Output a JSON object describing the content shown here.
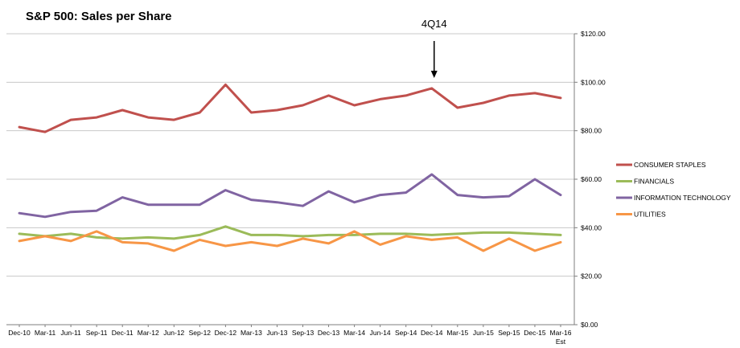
{
  "chart_data": {
    "type": "line",
    "title": "S&P 500: Sales per Share",
    "x": [
      "Dec-10",
      "Mar-11",
      "Jun-11",
      "Sep-11",
      "Dec-11",
      "Mar-12",
      "Jun-12",
      "Sep-12",
      "Dec-12",
      "Mar-13",
      "Jun-13",
      "Sep-13",
      "Dec-13",
      "Mar-14",
      "Jun-14",
      "Sep-14",
      "Dec-14",
      "Mar-15",
      "Jun-15",
      "Sep-15",
      "Dec-15",
      "Mar-16"
    ],
    "x_sublabels": {
      "21": "Est"
    },
    "ylim": [
      0,
      120
    ],
    "yticks": [
      0,
      20,
      40,
      60,
      80,
      100,
      120
    ],
    "ytick_labels": [
      "$0.00",
      "$20.00",
      "$40.00",
      "$60.00",
      "$80.00",
      "$100.00",
      "$120.00"
    ],
    "y_axis_side": "right",
    "grid": true,
    "legend_position": "right",
    "annotation": {
      "text": "4Q14",
      "x_index": 16,
      "type": "down-arrow"
    },
    "series": [
      {
        "name": "CONSUMER STAPLES",
        "color": "#c0504d",
        "values": [
          81.5,
          79.5,
          84.5,
          85.5,
          88.5,
          85.5,
          84.5,
          87.5,
          99,
          87.5,
          88.5,
          90.5,
          94.5,
          90.5,
          93,
          94.5,
          97.5,
          89.5,
          91.5,
          94.5,
          95.5,
          93.5
        ]
      },
      {
        "name": "FINANCIALS",
        "color": "#9bbb59",
        "values": [
          37.5,
          36.5,
          37.5,
          36,
          35.5,
          36,
          35.5,
          37,
          40.5,
          37,
          37,
          36.5,
          37,
          37,
          37.5,
          37.5,
          37,
          37.5,
          38,
          38,
          37.5,
          37
        ]
      },
      {
        "name": "INFORMATION TECHNOLOGY",
        "color": "#8064a2",
        "values": [
          46,
          44.5,
          46.5,
          47,
          52.5,
          49.5,
          49.5,
          49.5,
          55.5,
          51.5,
          50.5,
          49,
          55,
          50.5,
          53.5,
          54.5,
          62,
          53.5,
          52.5,
          53,
          60,
          53.5
        ]
      },
      {
        "name": "UTILITIES",
        "color": "#f79646",
        "values": [
          34.5,
          36.5,
          34.5,
          38.5,
          34,
          33.5,
          30.5,
          35,
          32.5,
          34,
          32.5,
          35.5,
          33.5,
          38.5,
          33,
          36.5,
          35,
          36,
          30.5,
          35.5,
          30.5,
          34
        ]
      }
    ]
  }
}
